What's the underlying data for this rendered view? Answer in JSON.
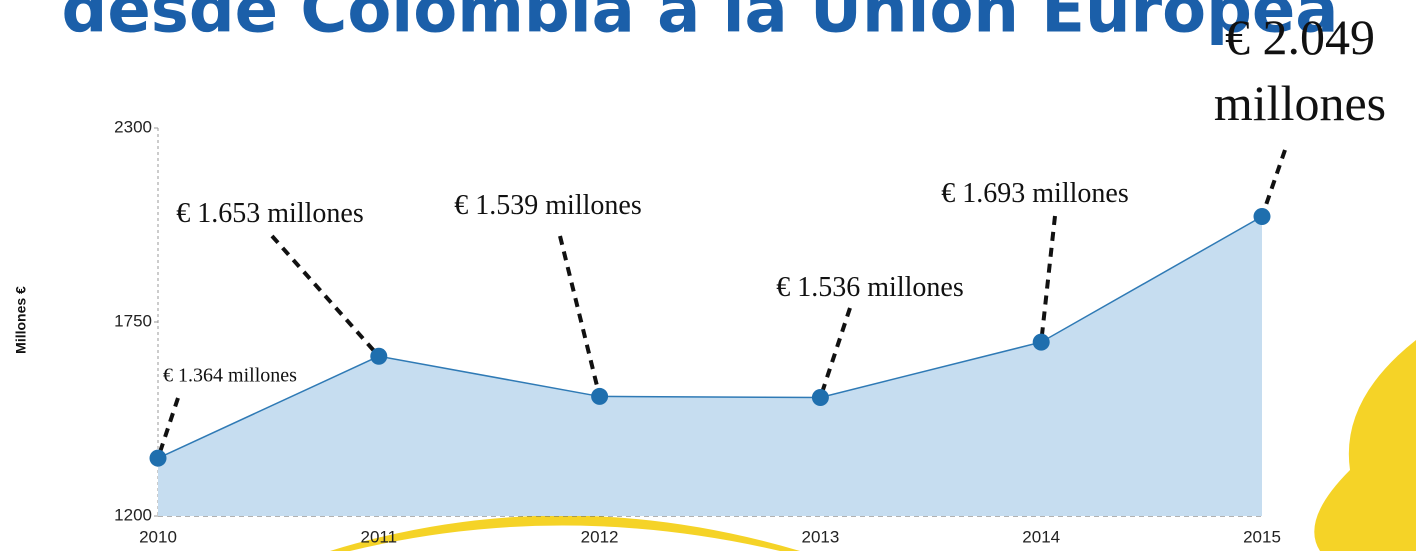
{
  "chart_data": {
    "type": "area",
    "title": "desde Colombia a la Unión Europea",
    "y_label": "Millones €",
    "categories": [
      "2010",
      "2011",
      "2012",
      "2013",
      "2014",
      "2015"
    ],
    "values": [
      1364,
      1653,
      1539,
      1536,
      1693,
      2049
    ],
    "value_labels": [
      "€ 1.364 millones",
      "€ 1.653 millones",
      "€ 1.539 millones",
      "€ 1.536 millones",
      "€ 1.693 millones",
      "€ 2.049 millones"
    ],
    "color": "#2f7ab5",
    "fill": "#c6ddf0",
    "ylim": [
      1200,
      2300
    ],
    "yticks": [
      1200,
      1750,
      2300
    ]
  }
}
